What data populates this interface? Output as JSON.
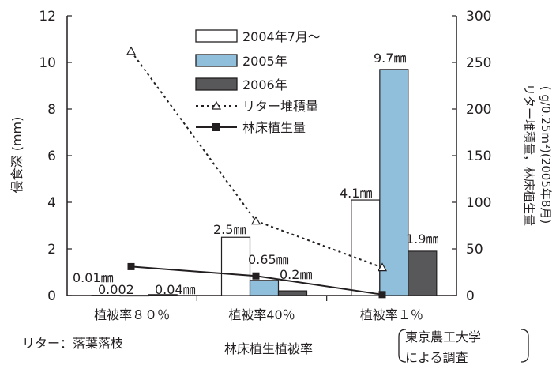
{
  "chart_data": {
    "type": "bar",
    "categories": [
      "植被率８０％",
      "植被率40％",
      "植被率１％"
    ],
    "series": [
      {
        "name": "2004年7月～",
        "values": [
          0.01,
          2.5,
          4.1
        ],
        "color": "#ffffff",
        "axis": "left"
      },
      {
        "name": "2005年",
        "values": [
          0.002,
          0.65,
          9.7
        ],
        "color": "#8fbfda",
        "axis": "left"
      },
      {
        "name": "2006年",
        "values": [
          0.04,
          0.2,
          1.9
        ],
        "color": "#58585a",
        "axis": "left"
      },
      {
        "name": "リター堆積量",
        "values": [
          262,
          80,
          30
        ],
        "type": "line",
        "style": "dotted",
        "marker": "triangle",
        "axis": "right"
      },
      {
        "name": "林床植生量",
        "values": [
          31,
          21,
          1
        ],
        "type": "line",
        "style": "solid",
        "marker": "square",
        "axis": "right"
      }
    ],
    "bar_labels": [
      [
        "0.01㎜",
        "0.002",
        "0.04㎜"
      ],
      [
        "2.5㎜",
        "0.65㎜",
        "0.2㎜"
      ],
      [
        "4.1㎜",
        "9.7㎜",
        "1.9㎜"
      ]
    ],
    "ylabel": "侵食深 (mm)",
    "y2label_line1": "リター堆積量，林床植生量",
    "y2label_line2": "( g/0.25m²)(2005年8月)",
    "xlabel": "林床植生植被率",
    "ylim": [
      0,
      12
    ],
    "yticks": [
      "0",
      "2",
      "4",
      "6",
      "8",
      "10",
      "12"
    ],
    "y2lim": [
      0,
      300
    ],
    "y2ticks": [
      "0",
      "50",
      "100",
      "150",
      "200",
      "250",
      "300"
    ],
    "legend_position": "top-center"
  },
  "footnote": "リター：落葉落枝",
  "source_line1": "東京農工大学",
  "source_line2": "による調査"
}
